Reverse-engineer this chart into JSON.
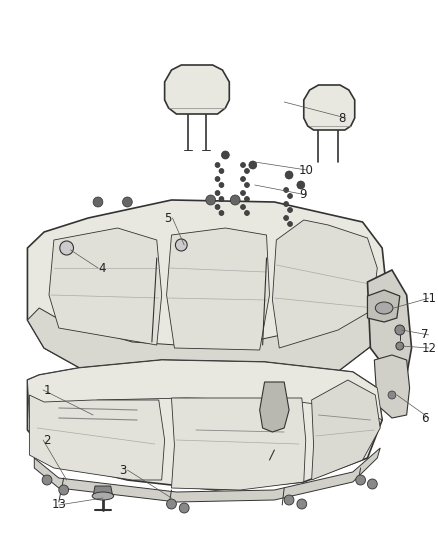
{
  "background_color": "#ffffff",
  "line_color": "#333333",
  "seat_fill": "#e8e8e0",
  "seat_fill2": "#d8d8d0",
  "figsize": [
    4.38,
    5.33
  ],
  "dpi": 100,
  "lw_main": 1.2,
  "lw_thin": 0.6,
  "lw_detail": 0.5,
  "label_fs": 8.5,
  "label_color": "#222222",
  "callout_color": "#555555"
}
